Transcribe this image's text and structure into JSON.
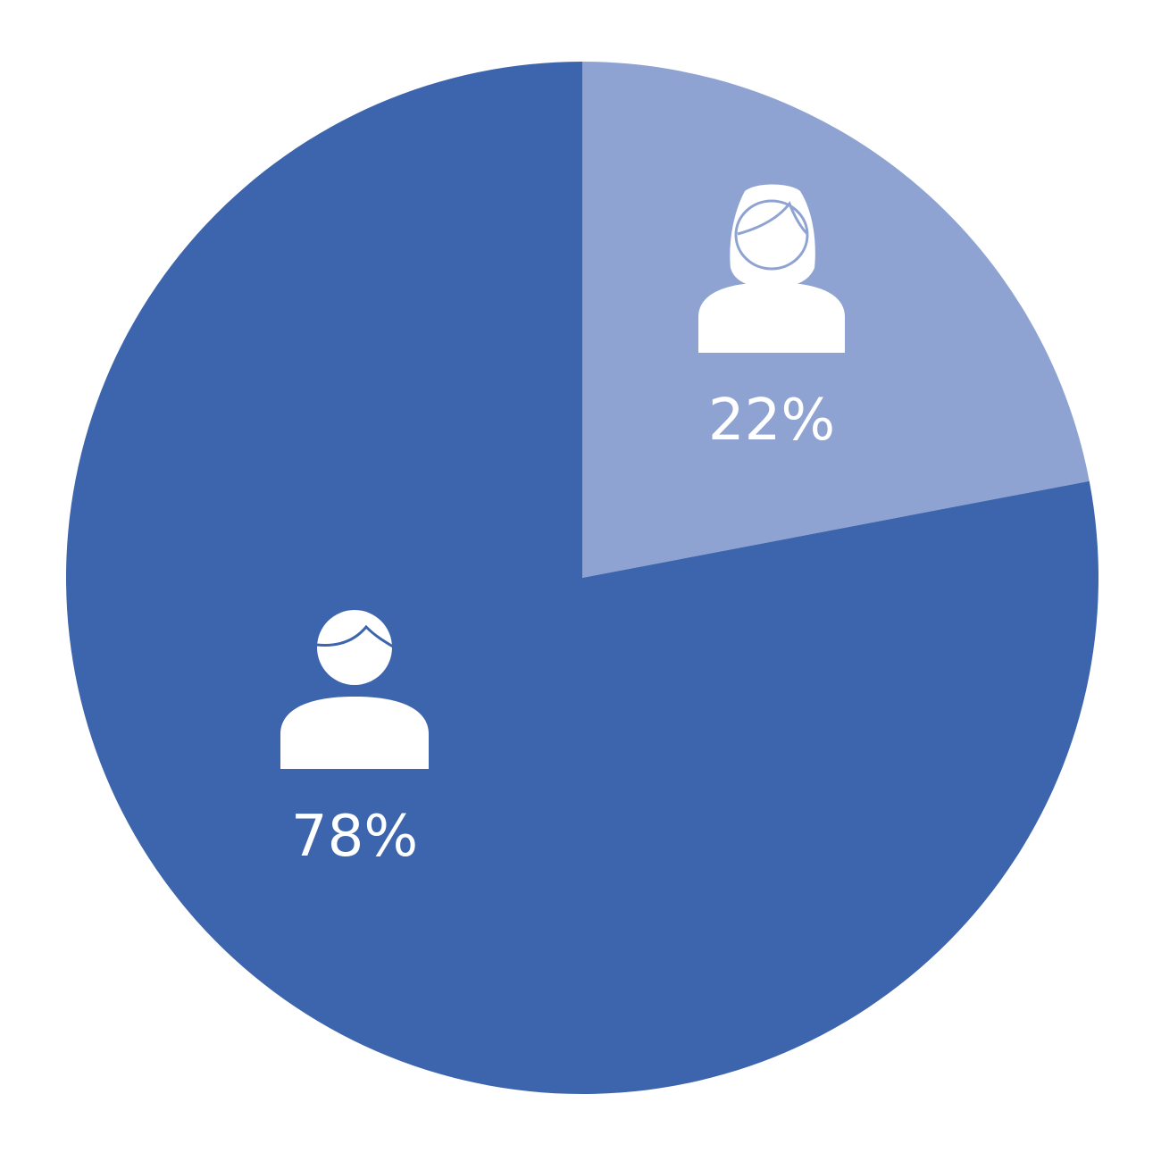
{
  "chart_data": {
    "type": "pie",
    "start_angle_deg": 0,
    "direction": "clockwise",
    "slices": [
      {
        "value": 22,
        "label": "22%",
        "icon": "female-person-icon",
        "color": "#8FA3D3"
      },
      {
        "value": 78,
        "label": "78%",
        "icon": "male-person-icon",
        "color": "#3D65AD"
      }
    ]
  },
  "colors": {
    "background": "#FFFFFF",
    "icon": "#FFFFFF",
    "label": "#FFFFFF"
  }
}
